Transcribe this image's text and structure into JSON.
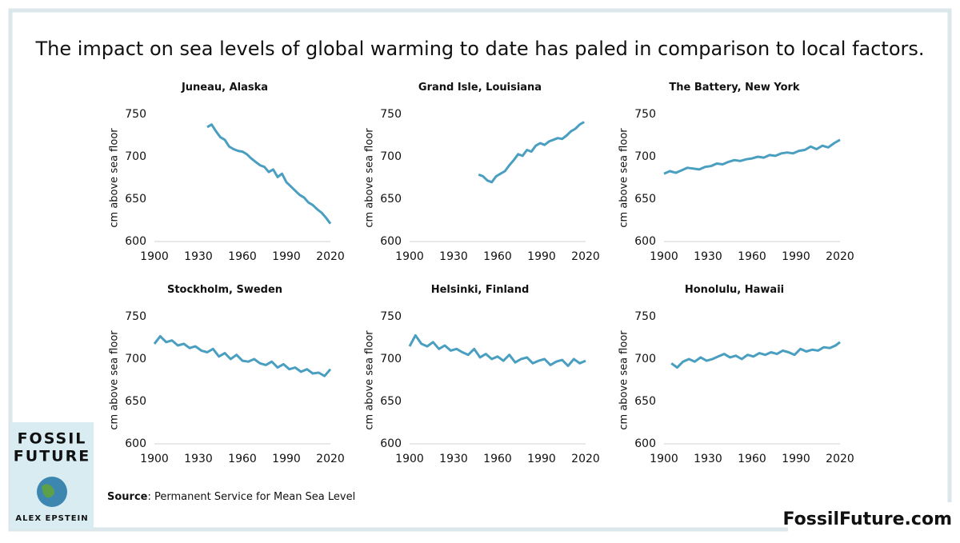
{
  "title": "The impact on sea levels of global warming to date has paled in comparison to local factors.",
  "source": {
    "label": "Source",
    "text": ": Permanent Service for Mean Sea Level"
  },
  "book": {
    "line1": "FOSSIL",
    "line2": "FUTURE",
    "author": "ALEX EPSTEIN"
  },
  "website": "FossilFuture.com",
  "chart_data": [
    {
      "type": "line",
      "title": "Juneau, Alaska",
      "y_label": "cm above sea floor",
      "x": [
        1936,
        1939,
        1942,
        1945,
        1948,
        1951,
        1954,
        1957,
        1960,
        1963,
        1966,
        1969,
        1972,
        1975,
        1978,
        1981,
        1984,
        1987,
        1990,
        1993,
        1996,
        1999,
        2002,
        2005,
        2008,
        2011,
        2014,
        2017,
        2020
      ],
      "values": [
        735,
        738,
        730,
        723,
        720,
        712,
        709,
        707,
        706,
        703,
        698,
        694,
        690,
        688,
        682,
        685,
        676,
        680,
        670,
        665,
        660,
        655,
        652,
        646,
        643,
        638,
        634,
        628,
        621
      ],
      "color": "#4a9fc0",
      "xlim": [
        1900,
        2020
      ],
      "xticks": [
        1900,
        1930,
        1960,
        1990,
        2020
      ],
      "ylim": [
        600,
        750
      ],
      "yticks": [
        600,
        650,
        700,
        750
      ]
    },
    {
      "type": "line",
      "title": "Grand Isle, Louisiana",
      "y_label": "cm above sea floor",
      "x": [
        1947,
        1950,
        1953,
        1956,
        1959,
        1962,
        1965,
        1968,
        1971,
        1974,
        1977,
        1980,
        1983,
        1986,
        1989,
        1992,
        1995,
        1998,
        2001,
        2004,
        2007,
        2010,
        2013,
        2016,
        2019
      ],
      "values": [
        679,
        677,
        672,
        670,
        677,
        680,
        683,
        690,
        696,
        703,
        701,
        708,
        706,
        713,
        716,
        714,
        718,
        720,
        722,
        721,
        725,
        730,
        733,
        738,
        741
      ],
      "color": "#4a9fc0",
      "xlim": [
        1900,
        2020
      ],
      "xticks": [
        1900,
        1930,
        1960,
        1990,
        2020
      ],
      "ylim": [
        600,
        750
      ],
      "yticks": [
        600,
        650,
        700,
        750
      ]
    },
    {
      "type": "line",
      "title": "The Battery, New York",
      "y_label": "cm above sea floor",
      "x": [
        1900,
        1904,
        1908,
        1912,
        1916,
        1920,
        1924,
        1928,
        1932,
        1936,
        1940,
        1944,
        1948,
        1952,
        1956,
        1960,
        1964,
        1968,
        1972,
        1976,
        1980,
        1984,
        1988,
        1992,
        1996,
        2000,
        2004,
        2008,
        2012,
        2016,
        2020
      ],
      "values": [
        680,
        683,
        681,
        684,
        687,
        686,
        685,
        688,
        689,
        692,
        691,
        694,
        696,
        695,
        697,
        698,
        700,
        699,
        702,
        701,
        704,
        705,
        704,
        707,
        708,
        712,
        709,
        713,
        711,
        716,
        720
      ],
      "color": "#4a9fc0",
      "xlim": [
        1900,
        2020
      ],
      "xticks": [
        1900,
        1930,
        1960,
        1990,
        2020
      ],
      "ylim": [
        600,
        750
      ],
      "yticks": [
        600,
        650,
        700,
        750
      ]
    },
    {
      "type": "line",
      "title": "Stockholm, Sweden",
      "y_label": "cm above sea floor",
      "x": [
        1900,
        1904,
        1908,
        1912,
        1916,
        1920,
        1924,
        1928,
        1932,
        1936,
        1940,
        1944,
        1948,
        1952,
        1956,
        1960,
        1964,
        1968,
        1972,
        1976,
        1980,
        1984,
        1988,
        1992,
        1996,
        2000,
        2004,
        2008,
        2012,
        2016,
        2020
      ],
      "values": [
        718,
        727,
        720,
        722,
        716,
        718,
        713,
        715,
        710,
        708,
        712,
        703,
        707,
        700,
        705,
        698,
        697,
        700,
        695,
        693,
        697,
        690,
        694,
        688,
        690,
        685,
        688,
        683,
        684,
        680,
        688
      ],
      "color": "#4a9fc0",
      "xlim": [
        1900,
        2020
      ],
      "xticks": [
        1900,
        1930,
        1960,
        1990,
        2020
      ],
      "ylim": [
        600,
        750
      ],
      "yticks": [
        600,
        650,
        700,
        750
      ]
    },
    {
      "type": "line",
      "title": "Helsinki, Finland",
      "y_label": "cm above sea floor",
      "x": [
        1900,
        1904,
        1908,
        1912,
        1916,
        1920,
        1924,
        1928,
        1932,
        1936,
        1940,
        1944,
        1948,
        1952,
        1956,
        1960,
        1964,
        1968,
        1972,
        1976,
        1980,
        1984,
        1988,
        1992,
        1996,
        2000,
        2004,
        2008,
        2012,
        2016,
        2020
      ],
      "values": [
        715,
        728,
        718,
        715,
        720,
        712,
        716,
        710,
        712,
        708,
        705,
        712,
        702,
        706,
        700,
        703,
        698,
        705,
        696,
        700,
        702,
        695,
        698,
        700,
        693,
        697,
        699,
        692,
        700,
        695,
        698
      ],
      "color": "#4a9fc0",
      "xlim": [
        1900,
        2020
      ],
      "xticks": [
        1900,
        1930,
        1960,
        1990,
        2020
      ],
      "ylim": [
        600,
        750
      ],
      "yticks": [
        600,
        650,
        700,
        750
      ]
    },
    {
      "type": "line",
      "title": "Honolulu, Hawaii",
      "y_label": "cm above sea floor",
      "x": [
        1905,
        1909,
        1913,
        1917,
        1921,
        1925,
        1929,
        1933,
        1937,
        1941,
        1945,
        1949,
        1953,
        1957,
        1961,
        1965,
        1969,
        1973,
        1977,
        1981,
        1985,
        1989,
        1993,
        1997,
        2001,
        2005,
        2009,
        2013,
        2017,
        2020
      ],
      "values": [
        695,
        690,
        697,
        700,
        697,
        702,
        698,
        700,
        703,
        706,
        702,
        704,
        700,
        705,
        703,
        707,
        705,
        708,
        706,
        710,
        708,
        705,
        712,
        709,
        711,
        710,
        714,
        713,
        716,
        720
      ],
      "color": "#4a9fc0",
      "xlim": [
        1900,
        2020
      ],
      "xticks": [
        1900,
        1930,
        1960,
        1990,
        2020
      ],
      "ylim": [
        600,
        750
      ],
      "yticks": [
        600,
        650,
        700,
        750
      ]
    }
  ]
}
